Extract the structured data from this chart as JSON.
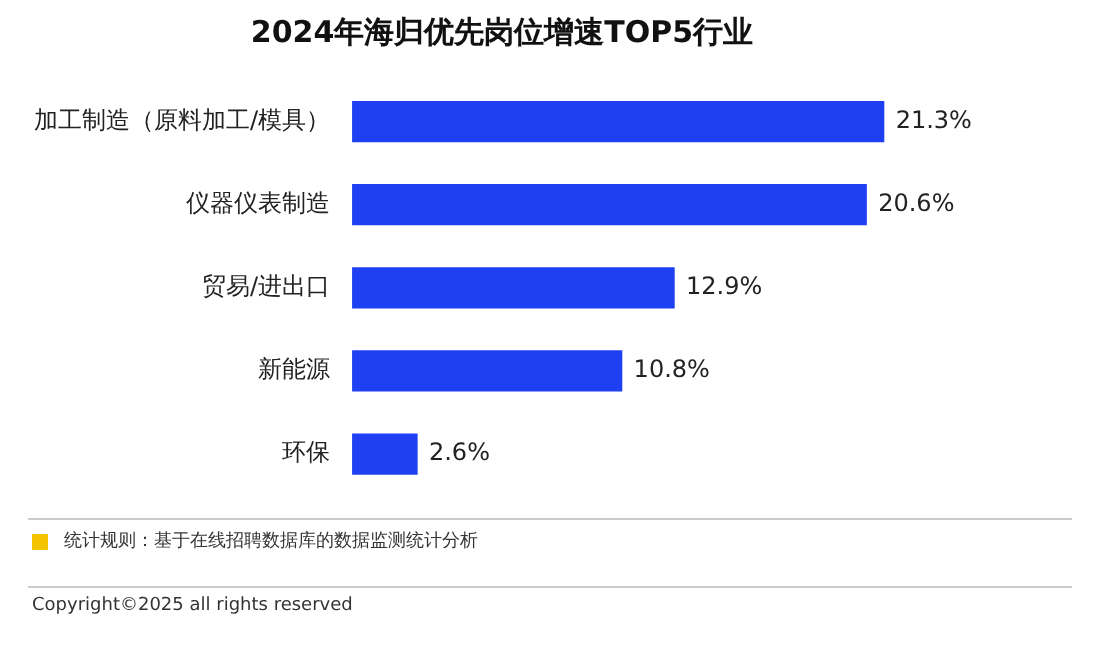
{
  "chart_data": {
    "type": "bar",
    "orientation": "horizontal",
    "title": "2024年海归优先岗位增速TOP5行业",
    "categories": [
      "加工制造（原料加工/模具）",
      "仪器仪表制造",
      "贸易/进出口",
      "新能源",
      "环保"
    ],
    "values": [
      21.3,
      20.6,
      12.9,
      10.8,
      2.6
    ],
    "value_labels": [
      "21.3%",
      "20.6%",
      "12.9%",
      "10.8%",
      "2.6%"
    ],
    "color": "#1f3ff2",
    "grid": false,
    "legend": false,
    "tick_labels": "y",
    "annotations": [
      "统计规则：基于在线招聘数据库的数据监测统计分析",
      "Copyright©2025 all rights reserved"
    ]
  }
}
